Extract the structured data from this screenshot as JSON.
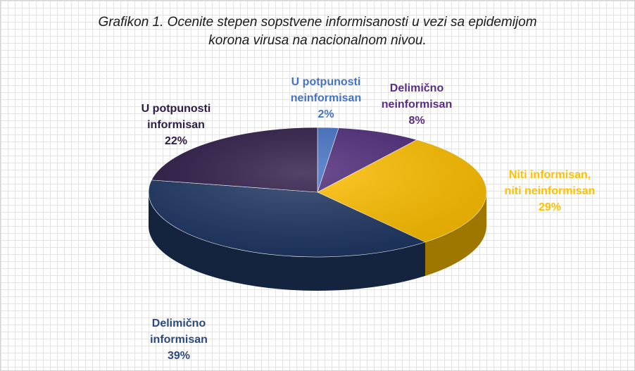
{
  "chart_data": {
    "type": "pie",
    "title": [
      "Grafikon 1. Ocenite stepen sopstvene informisanosti u vezi sa epidemijom",
      "korona virusa na nacionalnom nivou."
    ],
    "slices": [
      {
        "label": [
          "U potpunosti",
          "neinformisan"
        ],
        "percent_label": "2%",
        "value": 2,
        "color": "#4472C4"
      },
      {
        "label": [
          "Delimično",
          "neinformisan"
        ],
        "percent_label": "8%",
        "value": 8,
        "color": "#4E2A7A"
      },
      {
        "label": [
          "Niti informisan,",
          "niti neinformisan"
        ],
        "percent_label": "29%",
        "value": 29,
        "color": "#FFC000"
      },
      {
        "label": [
          "Delimično",
          "informisan"
        ],
        "percent_label": "39%",
        "value": 39,
        "color": "#203864"
      },
      {
        "label": [
          "U potpunosti",
          "informisan"
        ],
        "percent_label": "22%",
        "value": 22,
        "color": "#2E1A47"
      }
    ],
    "label_colors": [
      "#4472C4",
      "#5B2C83",
      "#FFC000",
      "#2E4A7A",
      "#2E1A47"
    ],
    "legend": "none",
    "style": "3d-pie"
  }
}
